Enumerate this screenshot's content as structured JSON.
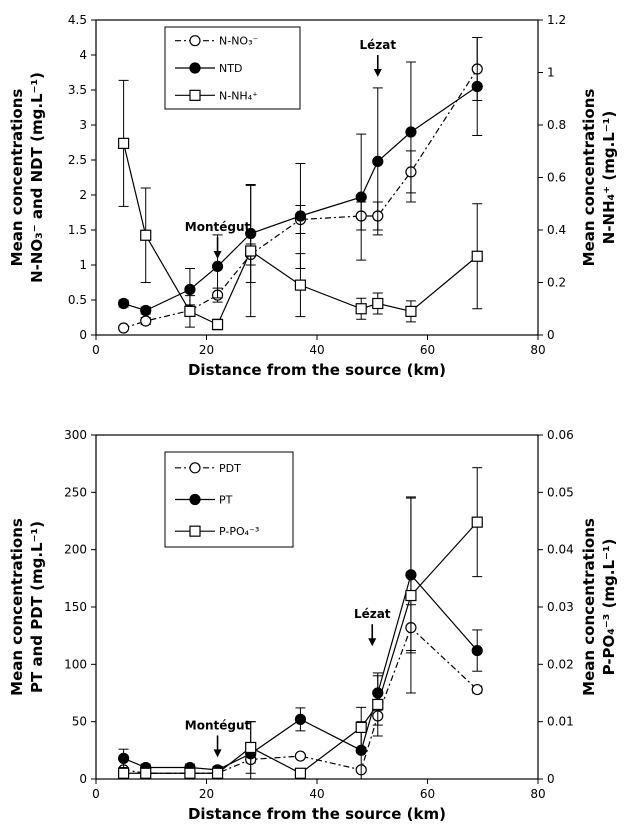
{
  "chart_data": [
    {
      "type": "line",
      "xlabel": "Distance from the source (km)",
      "ylabel_lines": [
        "Mean concentrations",
        "N-NO₃⁻ and NDT (mg.L⁻¹)"
      ],
      "y2label_lines": [
        "Mean concentrations",
        "N-NH₄⁺ (mg.L⁻¹)"
      ],
      "xlim": [
        0,
        80
      ],
      "ylim": [
        0,
        4.5
      ],
      "y2lim": [
        0,
        1.2
      ],
      "xticks": [
        "0",
        "20",
        "40",
        "60",
        "80"
      ],
      "yticks": [
        "0",
        "0.5",
        "1",
        "1.5",
        "2",
        "2.5",
        "3",
        "3.5",
        "4",
        "4.5"
      ],
      "y2ticks": [
        "0",
        "0.2",
        "0.4",
        "0.6",
        "0.8",
        "1",
        "1.2"
      ],
      "annotations": [
        {
          "text": "Montégut",
          "x": 22,
          "y": 1.4
        },
        {
          "text": "Lézat",
          "x": 51,
          "y": 4.0
        }
      ],
      "series": [
        {
          "name": "N-NO₃⁻",
          "axis": "left",
          "marker": "open-circle",
          "line": "dashdot",
          "x": [
            5,
            9,
            17,
            22,
            28,
            37,
            48,
            51,
            57,
            69
          ],
          "y": [
            0.1,
            0.2,
            0.35,
            0.57,
            1.15,
            1.65,
            1.7,
            1.7,
            2.33,
            3.8
          ],
          "err": [
            0.02,
            0.05,
            0.08,
            0.1,
            0.15,
            0.2,
            0.2,
            0.2,
            0.3,
            0.45
          ]
        },
        {
          "name": "NTD",
          "axis": "left",
          "marker": "filled-circle",
          "line": "solid",
          "x": [
            5,
            9,
            17,
            22,
            28,
            37,
            48,
            51,
            57,
            69
          ],
          "y": [
            0.45,
            0.35,
            0.65,
            0.98,
            1.45,
            1.7,
            1.97,
            2.48,
            2.9,
            3.55
          ],
          "err": [
            0.05,
            0.05,
            0.3,
            0.45,
            0.7,
            0.75,
            0.9,
            1.05,
            1.0,
            0.7
          ]
        },
        {
          "name": "N-NH₄⁺",
          "axis": "right",
          "marker": "open-square",
          "line": "solid",
          "x": [
            5,
            9,
            17,
            22,
            28,
            37,
            48,
            51,
            57,
            69
          ],
          "y": [
            0.73,
            0.38,
            0.09,
            0.04,
            0.32,
            0.19,
            0.1,
            0.12,
            0.09,
            0.3
          ],
          "err": [
            0.24,
            0.18,
            0.06,
            0.02,
            0.25,
            0.12,
            0.04,
            0.04,
            0.04,
            0.2
          ]
        }
      ]
    },
    {
      "type": "line",
      "xlabel": "Distance from the source (km)",
      "ylabel_lines": [
        "Mean concentrations",
        "PT and PDT (mg.L⁻¹)"
      ],
      "y2label_lines": [
        "Mean concentrations",
        "P-PO₄⁻³ (mg.L⁻¹)"
      ],
      "xlim": [
        0,
        80
      ],
      "ylim": [
        0,
        300
      ],
      "y2lim": [
        0,
        0.06
      ],
      "xticks": [
        "0",
        "20",
        "40",
        "60",
        "80"
      ],
      "yticks": [
        "0",
        "50",
        "100",
        "150",
        "200",
        "250",
        "300"
      ],
      "y2ticks": [
        "0",
        "0.01",
        "0.02",
        "0.03",
        "0.04",
        "0.05",
        "0.06"
      ],
      "annotations": [
        {
          "text": "Montégut",
          "x": 22,
          "y": 38
        },
        {
          "text": "Lézat",
          "x": 50,
          "y": 135
        }
      ],
      "series": [
        {
          "name": "PDT",
          "axis": "left",
          "marker": "open-circle",
          "line": "dashdot",
          "x": [
            5,
            9,
            17,
            22,
            28,
            37,
            48,
            51,
            57,
            69
          ],
          "y": [
            8,
            5,
            5,
            5,
            17,
            20,
            8,
            55,
            132,
            78
          ],
          "err": [
            1,
            1,
            1,
            1,
            3,
            2,
            2,
            8,
            20,
            3
          ]
        },
        {
          "name": "PT",
          "axis": "left",
          "marker": "filled-circle",
          "line": "solid",
          "x": [
            5,
            9,
            17,
            22,
            28,
            37,
            48,
            51,
            57,
            69
          ],
          "y": [
            18,
            10,
            10,
            8,
            22,
            52,
            25,
            75,
            178,
            112
          ],
          "err": [
            8,
            3,
            3,
            3,
            28,
            10,
            25,
            15,
            68,
            18
          ]
        },
        {
          "name": "P-PO₄⁻³",
          "axis": "right",
          "marker": "open-square",
          "line": "solid",
          "x": [
            5,
            9,
            17,
            22,
            28,
            37,
            48,
            51,
            57,
            69
          ],
          "y": [
            0.001,
            0.001,
            0.001,
            0.001,
            0.0055,
            0.001,
            0.009,
            0.013,
            0.032,
            0.0448
          ],
          "err": [
            0.0005,
            0.0005,
            0.0005,
            0.0005,
            0.0045,
            0.0005,
            0.0035,
            0.0055,
            0.017,
            0.0095
          ]
        }
      ]
    }
  ]
}
